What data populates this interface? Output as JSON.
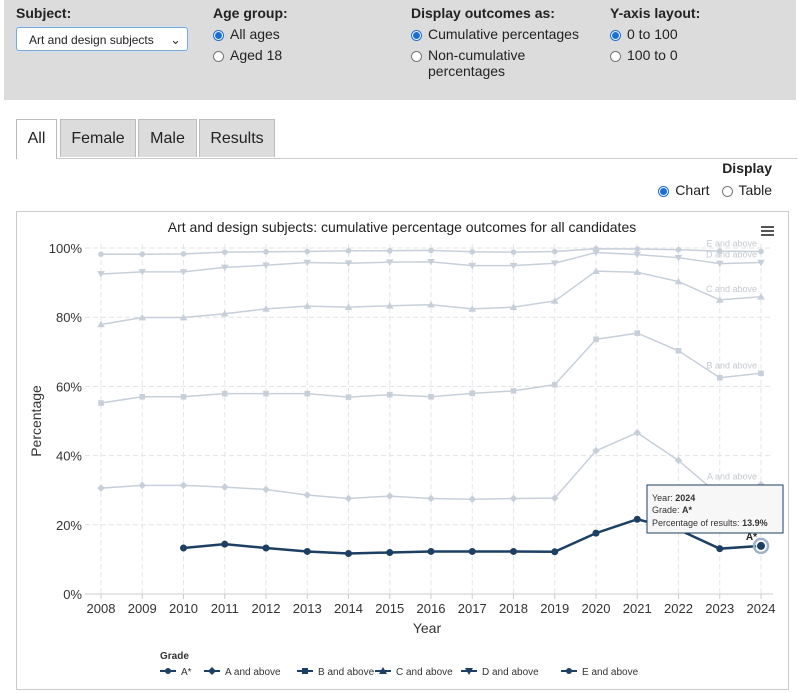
{
  "filters": {
    "subject": {
      "label": "Subject:",
      "value": "Art and design subjects"
    },
    "age": {
      "label": "Age group:",
      "options": [
        "All ages",
        "Aged 18"
      ],
      "selected": 0
    },
    "outcomes": {
      "label": "Display outcomes as:",
      "options": [
        "Cumulative percentages",
        "Non-cumulative",
        "percentages"
      ],
      "selected": 0
    },
    "yaxis": {
      "label": "Y-axis layout:",
      "options": [
        "0 to 100",
        "100 to 0"
      ],
      "selected": 0
    }
  },
  "tabs": [
    "All",
    "Female",
    "Male",
    "Results"
  ],
  "active_tab": 0,
  "display": {
    "label": "Display",
    "options": [
      "Chart",
      "Table"
    ],
    "selected": 0
  },
  "menu_icon": "hamburger-menu-icon",
  "colors": {
    "highlight": "#1c3f63",
    "faded": "#c7d0da",
    "accent": "#1a6fd6"
  },
  "tooltip": {
    "year_label": "Year: ",
    "year_value": "2024",
    "grade_label": "Grade: ",
    "grade_value": "A*",
    "pct_label": "Percentage of results: ",
    "pct_value": "13.9%"
  },
  "chart_data": {
    "type": "line",
    "title": "Art and design subjects: cumulative percentage outcomes for all candidates",
    "xlabel": "Year",
    "ylabel": "Percentage",
    "ylim": [
      0,
      100
    ],
    "yticks": [
      "0%",
      "20%",
      "40%",
      "60%",
      "80%",
      "100%"
    ],
    "legend_title": "Grade",
    "legend_position": "bottom",
    "x": [
      2008,
      2009,
      2010,
      2011,
      2012,
      2013,
      2014,
      2015,
      2016,
      2017,
      2018,
      2019,
      2020,
      2021,
      2022,
      2023,
      2024
    ],
    "highlighted_series": "A*",
    "series": [
      {
        "name": "A*",
        "end_label": "A*",
        "values": [
          null,
          null,
          13.3,
          14.4,
          13.3,
          12.3,
          11.7,
          12.0,
          12.3,
          12.3,
          12.3,
          12.2,
          17.6,
          21.6,
          18.6,
          13.1,
          13.9
        ]
      },
      {
        "name": "A and above",
        "end_label": "A and above",
        "values": [
          30.6,
          31.4,
          31.4,
          30.9,
          30.2,
          28.6,
          27.6,
          28.3,
          27.6,
          27.4,
          27.6,
          27.7,
          41.4,
          46.6,
          38.6,
          28.4,
          31.6
        ]
      },
      {
        "name": "B and above",
        "end_label": "B and above",
        "values": [
          55.2,
          57.0,
          57.0,
          57.9,
          57.9,
          57.9,
          56.9,
          57.6,
          57.0,
          58.0,
          58.7,
          60.5,
          73.6,
          75.4,
          70.3,
          62.5,
          63.8
        ]
      },
      {
        "name": "C and above",
        "end_label": "C and above",
        "values": [
          77.9,
          79.9,
          79.9,
          81.0,
          82.4,
          83.2,
          82.9,
          83.3,
          83.6,
          82.4,
          82.9,
          84.7,
          93.3,
          93.0,
          90.3,
          85.0,
          85.9
        ]
      },
      {
        "name": "D and above",
        "end_label": "D and above",
        "values": [
          92.5,
          93.1,
          93.1,
          94.4,
          95.0,
          95.8,
          95.6,
          95.9,
          96.0,
          94.9,
          94.9,
          95.6,
          98.7,
          98.1,
          97.2,
          95.5,
          95.8
        ]
      },
      {
        "name": "E and above",
        "end_label": "E and above",
        "values": [
          98.2,
          98.2,
          98.3,
          98.8,
          98.9,
          99.0,
          99.2,
          99.2,
          99.3,
          98.9,
          98.8,
          99.0,
          99.8,
          99.7,
          99.5,
          99.1,
          99.0
        ]
      }
    ]
  }
}
